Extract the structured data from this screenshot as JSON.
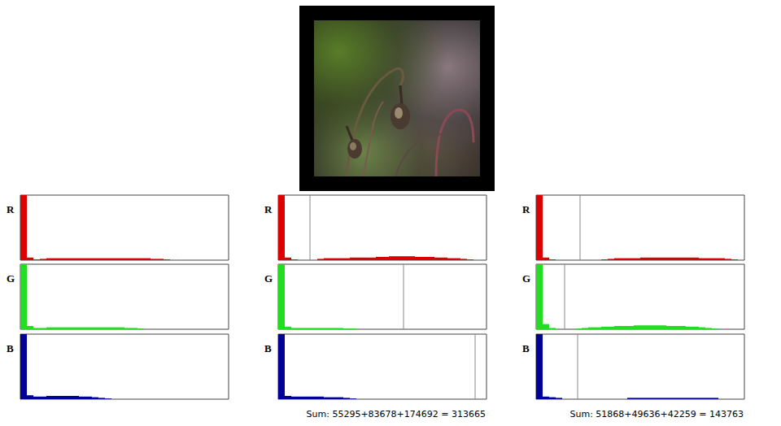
{
  "chart_data": [
    {
      "type": "histogram",
      "ylabel": "R",
      "color": "#dd0000",
      "tick_labels": false,
      "xlim": [
        0,
        256
      ],
      "ylim": [
        0,
        100
      ],
      "bins": [
        0,
        8,
        16,
        24,
        32,
        40,
        48,
        56,
        64,
        72,
        80,
        88,
        96,
        104,
        112,
        120,
        128,
        136,
        144,
        152,
        160,
        168,
        176,
        184,
        192,
        200,
        208,
        216,
        224,
        232,
        240,
        248,
        256
      ],
      "values": [
        100,
        4,
        1,
        2,
        3,
        3,
        3,
        3,
        3,
        3,
        3,
        3,
        3,
        3,
        3,
        3,
        3,
        3,
        3,
        3,
        2,
        2,
        1,
        0,
        0,
        0,
        0,
        0,
        0,
        0,
        0,
        0
      ]
    },
    {
      "type": "histogram",
      "ylabel": "G",
      "color": "#22dd22",
      "tick_labels": false,
      "xlim": [
        0,
        256
      ],
      "ylim": [
        0,
        100
      ],
      "bins": [
        0,
        8,
        16,
        24,
        32,
        40,
        48,
        56,
        64,
        72,
        80,
        88,
        96,
        104,
        112,
        120,
        128,
        136,
        144,
        152,
        160,
        168,
        176,
        184,
        192,
        200,
        208,
        216,
        224,
        232,
        240,
        248,
        256
      ],
      "values": [
        100,
        5,
        2,
        2,
        3,
        3,
        3,
        3,
        3,
        3,
        3,
        3,
        3,
        3,
        3,
        3,
        2,
        2,
        1,
        0,
        0,
        0,
        0,
        0,
        0,
        0,
        0,
        0,
        0,
        0,
        0,
        0
      ]
    },
    {
      "type": "histogram",
      "ylabel": "B",
      "color": "#000099",
      "tick_labels": false,
      "xlim": [
        0,
        256
      ],
      "ylim": [
        0,
        100
      ],
      "bins": [
        0,
        8,
        16,
        24,
        32,
        40,
        48,
        56,
        64,
        72,
        80,
        88,
        96,
        104,
        112,
        120,
        128,
        136,
        144,
        152,
        160,
        168,
        176,
        184,
        192,
        200,
        208,
        216,
        224,
        232,
        240,
        248,
        256
      ],
      "values": [
        100,
        6,
        4,
        4,
        5,
        5,
        5,
        5,
        5,
        4,
        4,
        3,
        2,
        1,
        0,
        0,
        0,
        0,
        0,
        0,
        0,
        0,
        0,
        0,
        0,
        0,
        0,
        0,
        0,
        0,
        0,
        0
      ]
    },
    {
      "type": "histogram",
      "ylabel": "R",
      "color": "#dd0000",
      "tick_labels": false,
      "xlim": [
        0,
        256
      ],
      "ylim": [
        0,
        100
      ],
      "vline": 39,
      "bins": [
        0,
        8,
        16,
        24,
        32,
        40,
        48,
        56,
        64,
        72,
        80,
        88,
        96,
        104,
        112,
        120,
        128,
        136,
        144,
        152,
        160,
        168,
        176,
        184,
        192,
        200,
        208,
        216,
        224,
        232,
        240,
        248,
        256
      ],
      "values": [
        100,
        4,
        1,
        0,
        0,
        0,
        2,
        3,
        3,
        3,
        3,
        4,
        4,
        4,
        4,
        5,
        5,
        6,
        6,
        6,
        6,
        5,
        5,
        5,
        4,
        4,
        3,
        3,
        2,
        1,
        0,
        0
      ]
    },
    {
      "type": "histogram",
      "ylabel": "G",
      "color": "#22dd22",
      "tick_labels": false,
      "xlim": [
        0,
        256
      ],
      "ylim": [
        0,
        100
      ],
      "vline": 154,
      "bins": [
        0,
        8,
        16,
        24,
        32,
        40,
        48,
        56,
        64,
        72,
        80,
        88,
        96,
        104,
        112,
        120,
        128,
        136,
        144,
        152,
        160,
        168,
        176,
        184,
        192,
        200,
        208,
        216,
        224,
        232,
        240,
        248,
        256
      ],
      "values": [
        100,
        4,
        2,
        2,
        2,
        2,
        2,
        2,
        2,
        2,
        1,
        1,
        0,
        0,
        0,
        0,
        0,
        0,
        0,
        0,
        0,
        0,
        0,
        0,
        0,
        0,
        0,
        0,
        0,
        0,
        0,
        0
      ]
    },
    {
      "type": "histogram",
      "ylabel": "B",
      "color": "#000099",
      "tick_labels": false,
      "xlim": [
        0,
        256
      ],
      "ylim": [
        0,
        100
      ],
      "vline": 242,
      "annotation": "Sum: 55295+83678+174692 = 313665",
      "bins": [
        0,
        8,
        16,
        24,
        32,
        40,
        48,
        56,
        64,
        72,
        80,
        88,
        96,
        104,
        112,
        120,
        128,
        136,
        144,
        152,
        160,
        168,
        176,
        184,
        192,
        200,
        208,
        216,
        224,
        232,
        240,
        248,
        256
      ],
      "values": [
        100,
        5,
        4,
        4,
        4,
        4,
        4,
        3,
        3,
        3,
        2,
        1,
        0,
        0,
        0,
        0,
        0,
        0,
        0,
        0,
        0,
        0,
        0,
        0,
        0,
        0,
        0,
        0,
        0,
        0,
        0,
        0
      ]
    },
    {
      "type": "histogram",
      "ylabel": "R",
      "color": "#dd0000",
      "tick_labels": false,
      "xlim": [
        0,
        256
      ],
      "ylim": [
        0,
        100
      ],
      "vline": 54,
      "bins": [
        0,
        8,
        16,
        24,
        32,
        40,
        48,
        56,
        64,
        72,
        80,
        88,
        96,
        104,
        112,
        120,
        128,
        136,
        144,
        152,
        160,
        168,
        176,
        184,
        192,
        200,
        208,
        216,
        224,
        232,
        240,
        248,
        256
      ],
      "values": [
        100,
        4,
        1,
        0,
        0,
        0,
        0,
        0,
        0,
        0,
        1,
        2,
        3,
        3,
        3,
        3,
        4,
        4,
        4,
        4,
        4,
        4,
        4,
        4,
        4,
        3,
        3,
        3,
        3,
        2,
        1,
        0
      ]
    },
    {
      "type": "histogram",
      "ylabel": "G",
      "color": "#22dd22",
      "tick_labels": false,
      "xlim": [
        0,
        256
      ],
      "ylim": [
        0,
        100
      ],
      "vline": 35,
      "bins": [
        0,
        8,
        16,
        24,
        32,
        40,
        48,
        56,
        64,
        72,
        80,
        88,
        96,
        104,
        112,
        120,
        128,
        136,
        144,
        152,
        160,
        168,
        176,
        184,
        192,
        200,
        208,
        216,
        224,
        232,
        240,
        248,
        256
      ],
      "values": [
        100,
        8,
        2,
        0,
        0,
        0,
        1,
        2,
        3,
        3,
        4,
        4,
        5,
        5,
        5,
        6,
        6,
        6,
        6,
        6,
        5,
        5,
        5,
        4,
        4,
        3,
        2,
        1,
        0,
        0,
        0,
        0
      ]
    },
    {
      "type": "histogram",
      "ylabel": "B",
      "color": "#000099",
      "tick_labels": false,
      "xlim": [
        0,
        256
      ],
      "ylim": [
        0,
        100
      ],
      "vline": 51,
      "annotation": "Sum: 51868+49636+42259 = 143763",
      "bins": [
        0,
        8,
        16,
        24,
        32,
        40,
        48,
        56,
        64,
        72,
        80,
        88,
        96,
        104,
        112,
        120,
        128,
        136,
        144,
        152,
        160,
        168,
        176,
        184,
        192,
        200,
        208,
        216,
        224,
        232,
        240,
        248,
        256
      ],
      "values": [
        100,
        4,
        3,
        2,
        0,
        0,
        0,
        0,
        0,
        0,
        0,
        0,
        0,
        0,
        2,
        2,
        2,
        2,
        2,
        2,
        2,
        2,
        2,
        2,
        2,
        2,
        2,
        2,
        0,
        0,
        0,
        0
      ]
    }
  ]
}
